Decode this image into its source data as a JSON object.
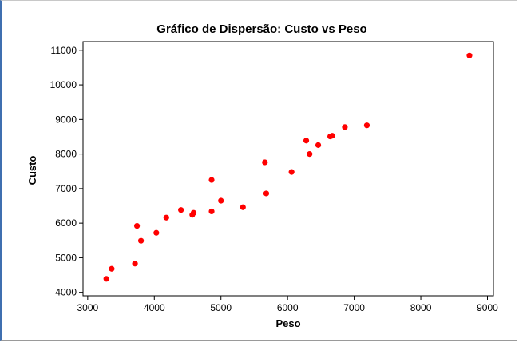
{
  "chart_data": {
    "type": "scatter",
    "title": "Gráfico de Dispersão: Custo vs Peso",
    "xlabel": "Peso",
    "ylabel": "Custo",
    "xlim": [
      2930,
      9090
    ],
    "ylim": [
      3900,
      11250
    ],
    "x_ticks": [
      3000,
      4000,
      5000,
      6000,
      7000,
      8000,
      9000
    ],
    "y_ticks": [
      4000,
      5000,
      6000,
      7000,
      8000,
      9000,
      10000,
      11000
    ],
    "grid": false,
    "marker_color": "#ff0000",
    "points": [
      {
        "x": 3280,
        "y": 4390
      },
      {
        "x": 3360,
        "y": 4680
      },
      {
        "x": 3710,
        "y": 4830
      },
      {
        "x": 3740,
        "y": 5920
      },
      {
        "x": 3800,
        "y": 5490
      },
      {
        "x": 4030,
        "y": 5720
      },
      {
        "x": 4180,
        "y": 6160
      },
      {
        "x": 4400,
        "y": 6380
      },
      {
        "x": 4570,
        "y": 6240
      },
      {
        "x": 4590,
        "y": 6300
      },
      {
        "x": 4860,
        "y": 6340
      },
      {
        "x": 4860,
        "y": 7250
      },
      {
        "x": 5000,
        "y": 6650
      },
      {
        "x": 5330,
        "y": 6460
      },
      {
        "x": 5660,
        "y": 7760
      },
      {
        "x": 5680,
        "y": 6860
      },
      {
        "x": 6060,
        "y": 7480
      },
      {
        "x": 6280,
        "y": 8390
      },
      {
        "x": 6330,
        "y": 8000
      },
      {
        "x": 6460,
        "y": 8260
      },
      {
        "x": 6640,
        "y": 8510
      },
      {
        "x": 6670,
        "y": 8530
      },
      {
        "x": 6860,
        "y": 8780
      },
      {
        "x": 7190,
        "y": 8830
      },
      {
        "x": 8730,
        "y": 10850
      }
    ]
  }
}
